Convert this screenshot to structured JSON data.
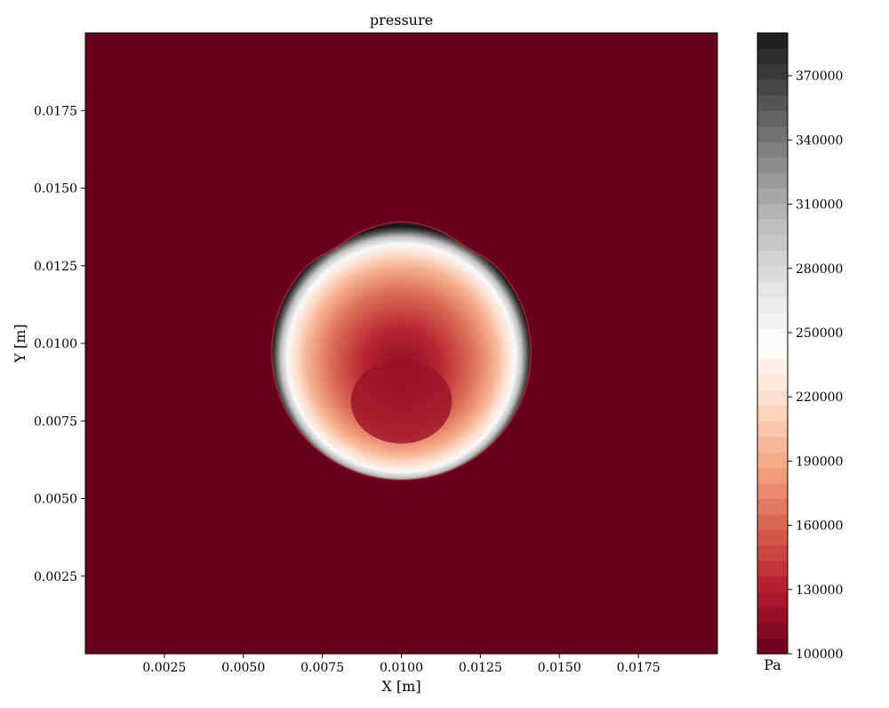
{
  "chart_data": {
    "type": "heatmap",
    "title": "pressure",
    "xlabel": "X [m]",
    "ylabel": "Y [m]",
    "xlim": [
      0.0,
      0.02
    ],
    "ylim": [
      0.0,
      0.02
    ],
    "x_ticks": [
      0.0025,
      0.005,
      0.0075,
      0.01,
      0.0125,
      0.015,
      0.0175
    ],
    "x_tick_labels": [
      "0.0025",
      "0.0050",
      "0.0075",
      "0.0100",
      "0.0125",
      "0.0150",
      "0.0175"
    ],
    "y_ticks": [
      0.0025,
      0.005,
      0.0075,
      0.01,
      0.0125,
      0.015,
      0.0175
    ],
    "y_tick_labels": [
      "0.0025",
      "0.0050",
      "0.0075",
      "0.0100",
      "0.0125",
      "0.0150",
      "0.0175"
    ],
    "grid": false,
    "colormap": "RdGy",
    "colorbar": {
      "label": "Pa",
      "min": 100000,
      "max": 390000,
      "levels": 40,
      "ticks": [
        100000,
        130000,
        160000,
        190000,
        220000,
        250000,
        280000,
        310000,
        340000,
        370000
      ],
      "tick_labels": [
        "100000",
        "130000",
        "160000",
        "190000",
        "220000",
        "250000",
        "280000",
        "310000",
        "340000",
        "370000"
      ]
    },
    "field": {
      "background_value": 100000,
      "wave_center": [
        0.01,
        0.0097
      ],
      "wave_radius": 0.0041,
      "peak_value": 390000,
      "interior_value": 120000
    }
  }
}
